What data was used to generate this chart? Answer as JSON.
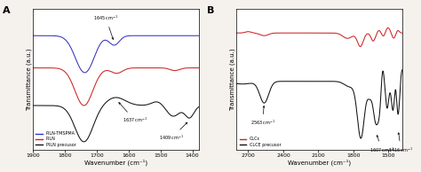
{
  "panel_A": {
    "label": "A",
    "xmin": 1900,
    "xmax": 1380,
    "xlabel": "Wavenumber (cm⁻¹)",
    "ylabel": "Transmittance (a.u.)",
    "legend": [
      {
        "label": "PILN-TMSPMA",
        "color": "#3333bb"
      },
      {
        "label": "PILN",
        "color": "#cc2222"
      },
      {
        "label": "PILN precusor",
        "color": "#111111"
      }
    ]
  },
  "panel_B": {
    "label": "B",
    "xmin": 2800,
    "xmax": 1380,
    "xlabel": "Wavenumber (cm⁻¹)",
    "ylabel": "Transmittance (a.u.)",
    "legend": [
      {
        "label": "CLCε",
        "color": "#cc2222"
      },
      {
        "label": "CLCE precusor",
        "color": "#111111"
      }
    ]
  },
  "bg_color": "#f5f2ee"
}
